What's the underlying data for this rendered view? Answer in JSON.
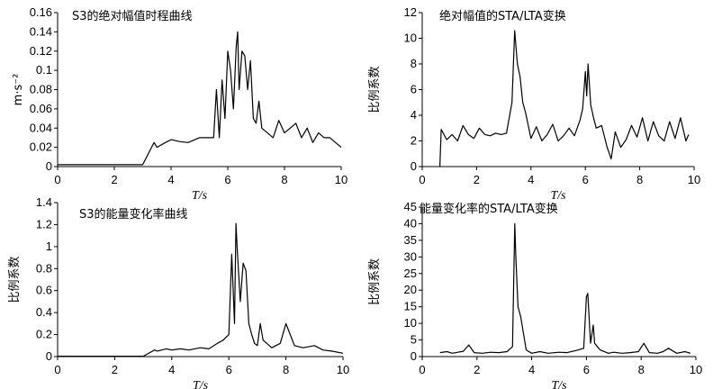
{
  "chart_data": [
    {
      "type": "line",
      "title": "S3的绝对幅值时程曲线",
      "xlabel": "T/s",
      "ylabel": "m·s⁻²",
      "xlim": [
        0,
        10
      ],
      "ylim": [
        0,
        0.16
      ],
      "xticks": [
        "0",
        "2",
        "4",
        "6",
        "8",
        "10"
      ],
      "yticks": [
        "0",
        "0.02",
        "0.04",
        "0.06",
        "0.08",
        "0.1",
        "0.12",
        "0.14",
        "0.16"
      ],
      "series": [
        {
          "x": [
            0,
            0.5,
            1,
            1.5,
            2,
            2.5,
            3,
            3.4,
            3.5,
            3.8,
            4,
            4.3,
            4.6,
            5,
            5.3,
            5.5,
            5.6,
            5.7,
            5.8,
            5.9,
            6,
            6.1,
            6.2,
            6.3,
            6.35,
            6.4,
            6.5,
            6.6,
            6.7,
            6.8,
            6.9,
            7,
            7.1,
            7.2,
            7.4,
            7.6,
            7.8,
            8,
            8.2,
            8.4,
            8.6,
            8.8,
            9,
            9.2,
            9.4,
            9.6,
            9.8,
            10
          ],
          "y": [
            0.002,
            0.002,
            0.002,
            0.002,
            0.002,
            0.002,
            0.002,
            0.025,
            0.02,
            0.025,
            0.028,
            0.026,
            0.025,
            0.03,
            0.03,
            0.03,
            0.08,
            0.03,
            0.09,
            0.05,
            0.12,
            0.1,
            0.06,
            0.125,
            0.14,
            0.08,
            0.12,
            0.115,
            0.08,
            0.11,
            0.05,
            0.045,
            0.068,
            0.04,
            0.035,
            0.03,
            0.048,
            0.035,
            0.04,
            0.045,
            0.03,
            0.04,
            0.025,
            0.035,
            0.03,
            0.03,
            0.025,
            0.02
          ]
        }
      ]
    },
    {
      "type": "line",
      "title": "绝对幅值的STA/LTA变换",
      "xlabel": "T/s",
      "ylabel": "比例系数",
      "xlim": [
        0,
        10
      ],
      "ylim": [
        0,
        12
      ],
      "xticks": [
        "0",
        "2",
        "4",
        "6",
        "8",
        "10"
      ],
      "yticks": [
        "0",
        "2",
        "4",
        "6",
        "8",
        "10",
        "12"
      ],
      "series": [
        {
          "x": [
            0.65,
            0.7,
            0.9,
            1.1,
            1.3,
            1.5,
            1.7,
            1.9,
            2.1,
            2.3,
            2.5,
            2.7,
            2.9,
            3.1,
            3.3,
            3.4,
            3.5,
            3.6,
            3.7,
            3.8,
            4,
            4.2,
            4.4,
            4.6,
            4.8,
            5,
            5.2,
            5.4,
            5.6,
            5.8,
            5.9,
            6,
            6.05,
            6.1,
            6.2,
            6.3,
            6.4,
            6.6,
            6.8,
            6.95,
            7.1,
            7.3,
            7.5,
            7.7,
            7.9,
            8.1,
            8.3,
            8.5,
            8.7,
            8.9,
            9.1,
            9.3,
            9.5,
            9.7,
            9.8
          ],
          "y": [
            0,
            2.9,
            2.1,
            2.5,
            2.0,
            3.2,
            2.5,
            2.2,
            3.0,
            2.5,
            2.4,
            2.6,
            2.5,
            2.6,
            5.0,
            10.6,
            8.0,
            7.0,
            5.0,
            4.2,
            2.2,
            3.1,
            2.0,
            2.5,
            3.3,
            2.0,
            2.4,
            3.0,
            2.4,
            3.6,
            4.5,
            7.4,
            5.5,
            8.0,
            4.8,
            3.8,
            3.0,
            3.2,
            1.5,
            0.6,
            2.7,
            1.5,
            2.1,
            3.2,
            2.3,
            3.8,
            2.0,
            3.5,
            2.4,
            2.0,
            3.5,
            2.2,
            3.8,
            2.0,
            2.5
          ]
        }
      ]
    },
    {
      "type": "line",
      "title": "S3的能量变化率曲线",
      "xlabel": "T/s",
      "ylabel": "比例系数",
      "xlim": [
        0,
        10
      ],
      "ylim": [
        0,
        1.4
      ],
      "xticks": [
        "0",
        "2",
        "4",
        "6",
        "8",
        "10"
      ],
      "yticks": [
        "0",
        "0.2",
        "0.4",
        "0.6",
        "0.8",
        "1",
        "1.2",
        "1.4"
      ],
      "series": [
        {
          "x": [
            0,
            0.5,
            1,
            1.5,
            2,
            2.5,
            3,
            3.4,
            3.5,
            3.8,
            4,
            4.3,
            4.6,
            5,
            5.3,
            5.6,
            5.8,
            6,
            6.1,
            6.2,
            6.25,
            6.3,
            6.4,
            6.5,
            6.6,
            6.7,
            6.8,
            6.9,
            7,
            7.1,
            7.2,
            7.5,
            7.8,
            8,
            8.3,
            8.6,
            9,
            9.3,
            9.6,
            10
          ],
          "y": [
            0.003,
            0.003,
            0.003,
            0.003,
            0.003,
            0.003,
            0.003,
            0.06,
            0.05,
            0.07,
            0.06,
            0.07,
            0.06,
            0.08,
            0.07,
            0.12,
            0.15,
            0.2,
            0.93,
            0.3,
            1.21,
            0.95,
            0.5,
            0.85,
            0.78,
            0.3,
            0.2,
            0.12,
            0.1,
            0.3,
            0.15,
            0.08,
            0.12,
            0.3,
            0.1,
            0.08,
            0.1,
            0.06,
            0.05,
            0.03
          ]
        }
      ]
    },
    {
      "type": "line",
      "title": "能量变化率的STA/LTA变换",
      "xlabel": "T/s",
      "ylabel": "比例系数",
      "xlim": [
        0,
        10
      ],
      "ylim": [
        0,
        45
      ],
      "xticks": [
        "0",
        "2",
        "4",
        "6",
        "8",
        "10"
      ],
      "yticks": [
        "0",
        "5",
        "10",
        "15",
        "20",
        "25",
        "30",
        "35",
        "40",
        "45"
      ],
      "series": [
        {
          "x": [
            0.65,
            0.9,
            1.1,
            1.3,
            1.5,
            1.7,
            1.9,
            2.2,
            2.5,
            2.8,
            3.1,
            3.3,
            3.38,
            3.42,
            3.5,
            3.6,
            3.8,
            4,
            4.3,
            4.6,
            5,
            5.3,
            5.6,
            5.9,
            6,
            6.05,
            6.15,
            6.25,
            6.3,
            6.5,
            6.8,
            7,
            7.3,
            7.6,
            7.9,
            8.1,
            8.3,
            8.6,
            8.8,
            9,
            9.3,
            9.6,
            9.8
          ],
          "y": [
            1.2,
            1.5,
            1.0,
            1.3,
            1.6,
            3.5,
            1.2,
            1.0,
            1.3,
            1.2,
            1.5,
            3.0,
            40.0,
            30.0,
            15.0,
            12.0,
            2.0,
            1.0,
            1.5,
            1.0,
            1.3,
            1.2,
            1.8,
            2.5,
            18.0,
            19.0,
            4.0,
            9.5,
            4.0,
            2.0,
            1.0,
            1.3,
            1.0,
            1.2,
            1.5,
            4.0,
            1.2,
            1.0,
            1.5,
            2.5,
            1.0,
            1.5,
            1.0
          ]
        }
      ]
    }
  ]
}
